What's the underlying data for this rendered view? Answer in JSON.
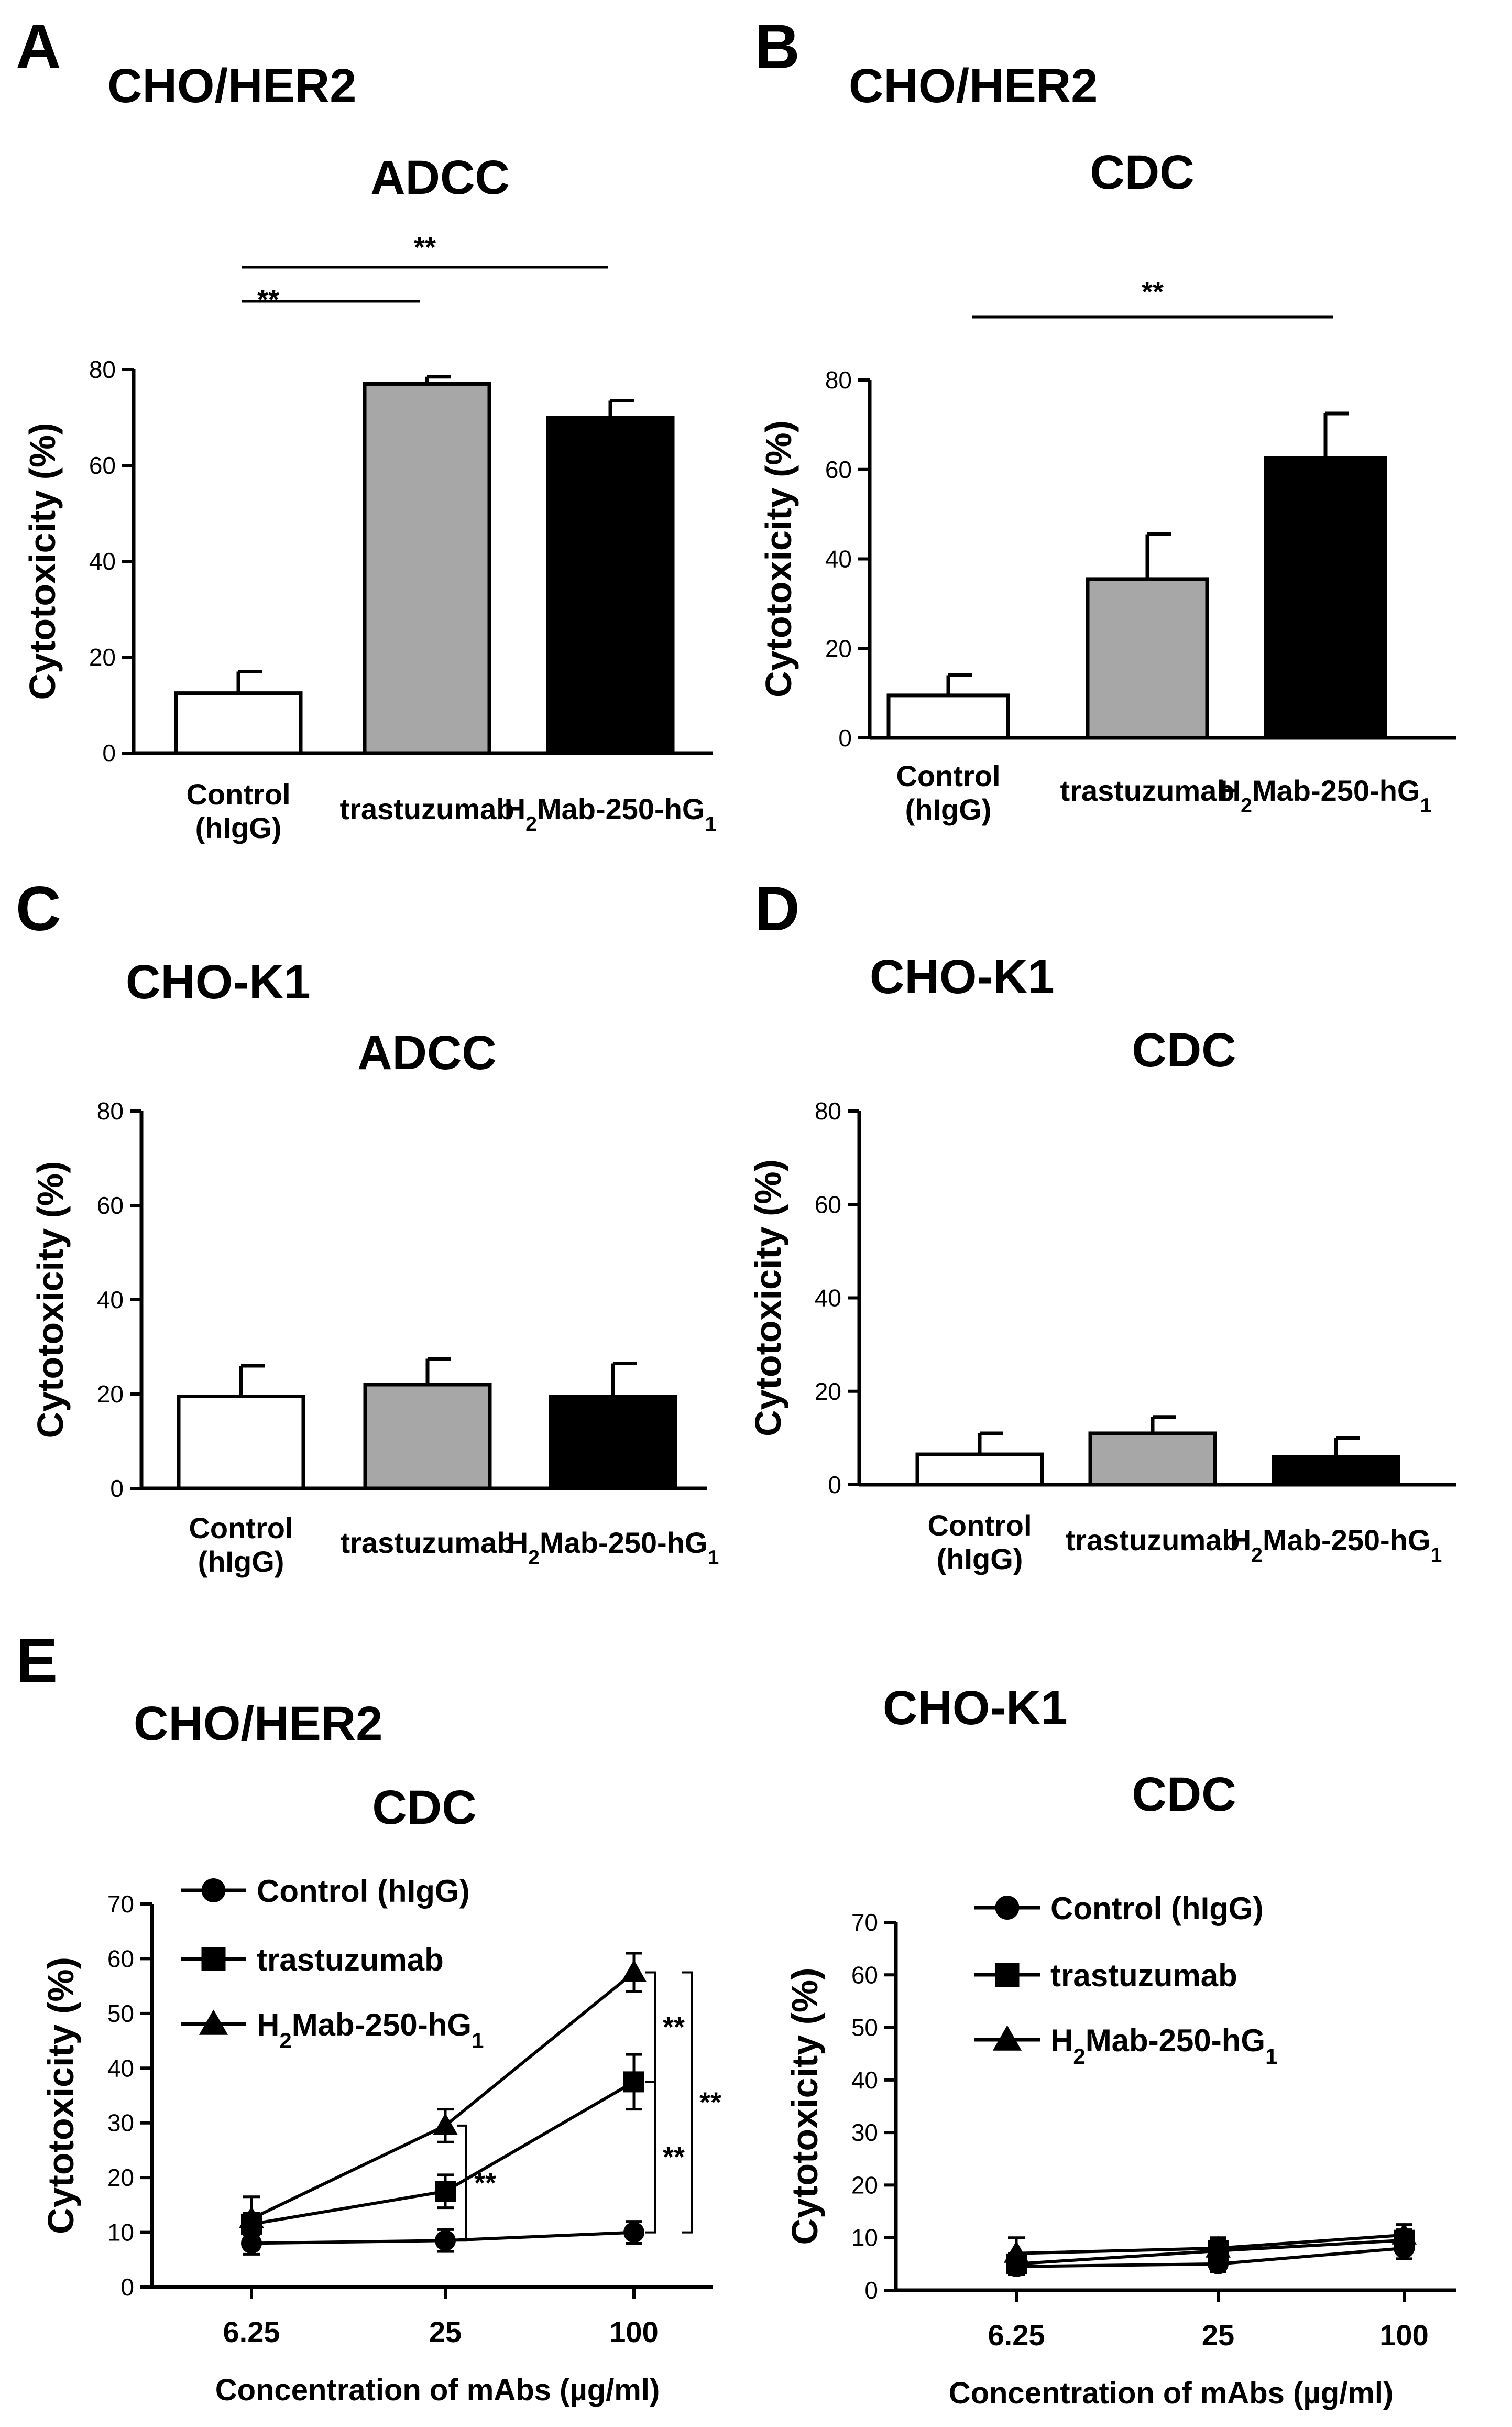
{
  "chart_data": [
    {
      "id": "A",
      "panel_label": "A",
      "cell_line": "CHO/HER2",
      "title": "ADCC",
      "type": "bar",
      "ylabel": "Cytotoxicity (%)",
      "ylim": [
        0,
        80
      ],
      "yticks": [
        0,
        20,
        40,
        60,
        80
      ],
      "categories": [
        "Control (hIgG)",
        "trastuzumab",
        "H2Mab-250-hG1"
      ],
      "values": [
        12.5,
        77,
        70
      ],
      "errors": [
        4.5,
        1.5,
        3.5
      ],
      "bar_colors": [
        "#ffffff",
        "#a7a7a7",
        "#000000"
      ],
      "significance": [
        {
          "from": 0,
          "to": 1,
          "label": "**"
        },
        {
          "from": 0,
          "to": 2,
          "label": "**"
        }
      ]
    },
    {
      "id": "B",
      "panel_label": "B",
      "cell_line": "CHO/HER2",
      "title": "CDC",
      "type": "bar",
      "ylabel": "Cytotoxicity (%)",
      "ylim": [
        0,
        80
      ],
      "yticks": [
        0,
        20,
        40,
        60,
        80
      ],
      "categories": [
        "Control (hIgG)",
        "trastuzumab",
        "H2Mab-250-hG1"
      ],
      "values": [
        9.5,
        35.5,
        62.5
      ],
      "errors": [
        4.5,
        10,
        10
      ],
      "bar_colors": [
        "#ffffff",
        "#a7a7a7",
        "#000000"
      ],
      "significance": [
        {
          "from": 0,
          "to": 2,
          "label": "**"
        }
      ]
    },
    {
      "id": "C",
      "panel_label": "C",
      "cell_line": "CHO-K1",
      "title": "ADCC",
      "type": "bar",
      "ylabel": "Cytotoxicity (%)",
      "ylim": [
        0,
        80
      ],
      "yticks": [
        0,
        20,
        40,
        60,
        80
      ],
      "categories": [
        "Control (hIgG)",
        "trastuzumab",
        "H2Mab-250-hG1"
      ],
      "values": [
        19.5,
        22,
        19.5
      ],
      "errors": [
        6.5,
        5.5,
        7
      ],
      "bar_colors": [
        "#ffffff",
        "#a7a7a7",
        "#000000"
      ],
      "significance": []
    },
    {
      "id": "D",
      "panel_label": "D",
      "cell_line": "CHO-K1",
      "title": "CDC",
      "type": "bar",
      "ylabel": "Cytotoxicity (%)",
      "ylim": [
        0,
        80
      ],
      "yticks": [
        0,
        20,
        40,
        60,
        80
      ],
      "categories": [
        "Control (hIgG)",
        "trastuzumab",
        "H2Mab-250-hG1"
      ],
      "values": [
        6.5,
        11,
        6
      ],
      "errors": [
        4.5,
        3.5,
        4
      ],
      "bar_colors": [
        "#ffffff",
        "#a7a7a7",
        "#000000"
      ],
      "significance": []
    },
    {
      "id": "E1",
      "panel_label": "E",
      "cell_line": "CHO/HER2",
      "title": "CDC",
      "type": "line",
      "ylabel": "Cytotoxicity (%)",
      "xlabel": "Concentration of mAbs (µg/ml)",
      "x": [
        "6.25",
        "25",
        "100"
      ],
      "ylim": [
        0,
        70
      ],
      "yticks": [
        0,
        10,
        20,
        30,
        40,
        50,
        60,
        70
      ],
      "series": [
        {
          "name": "Control (hIgG)",
          "marker": "circle",
          "values": [
            8,
            8.5,
            10
          ],
          "errors": [
            2,
            2,
            2
          ]
        },
        {
          "name": "trastuzumab",
          "marker": "square",
          "values": [
            11.5,
            17.5,
            37.5
          ],
          "errors": [
            2,
            3,
            5
          ]
        },
        {
          "name": "H2Mab-250-hG1",
          "marker": "triangle",
          "values": [
            12.5,
            29.5,
            57.5
          ],
          "errors": [
            4,
            3,
            3.5
          ]
        }
      ],
      "significance": [
        {
          "x_index": 1,
          "between": [
            0,
            2
          ],
          "label": "**"
        },
        {
          "x_index": 2,
          "between": [
            1,
            2
          ],
          "label": "**"
        },
        {
          "x_index": 2,
          "between": [
            0,
            1
          ],
          "label": "**"
        },
        {
          "x_index": 2,
          "between": [
            0,
            2
          ],
          "label": "**"
        }
      ]
    },
    {
      "id": "E2",
      "panel_label": "",
      "cell_line": "CHO-K1",
      "title": "CDC",
      "type": "line",
      "ylabel": "Cytotoxicity (%)",
      "xlabel": "Concentration of mAbs (µg/ml)",
      "x": [
        "6.25",
        "25",
        "100"
      ],
      "ylim": [
        0,
        70
      ],
      "yticks": [
        0,
        10,
        20,
        30,
        40,
        50,
        60,
        70
      ],
      "series": [
        {
          "name": "Control (hIgG)",
          "marker": "circle",
          "values": [
            4.5,
            5,
            8
          ],
          "errors": [
            1.5,
            1.5,
            2
          ]
        },
        {
          "name": "trastuzumab",
          "marker": "square",
          "values": [
            5,
            7.5,
            9.5
          ],
          "errors": [
            2,
            2,
            2
          ]
        },
        {
          "name": "H2Mab-250-hG1",
          "marker": "triangle",
          "values": [
            7,
            8,
            10.5
          ],
          "errors": [
            3,
            2,
            2
          ]
        }
      ],
      "significance": []
    }
  ]
}
